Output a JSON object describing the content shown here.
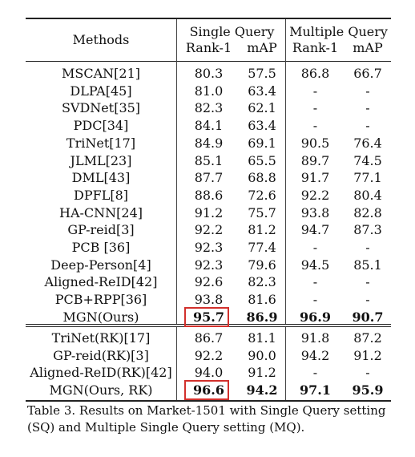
{
  "table": {
    "header": {
      "methods": "Methods",
      "single_query": "Single Query",
      "multiple_query": "Multiple Query",
      "rank1": "Rank-1",
      "map": "mAP",
      "rank1_mq": "Rank-1",
      "map_mq": "mAP"
    },
    "rows": [
      {
        "method": "MSCAN[21]",
        "sq_rank1": "80.3",
        "sq_map": "57.5",
        "mq_rank1": "86.8",
        "mq_map": "66.7"
      },
      {
        "method": "DLPA[45]",
        "sq_rank1": "81.0",
        "sq_map": "63.4",
        "mq_rank1": "-",
        "mq_map": "-"
      },
      {
        "method": "SVDNet[35]",
        "sq_rank1": "82.3",
        "sq_map": "62.1",
        "mq_rank1": "-",
        "mq_map": "-"
      },
      {
        "method": "PDC[34]",
        "sq_rank1": "84.1",
        "sq_map": "63.4",
        "mq_rank1": "-",
        "mq_map": "-"
      },
      {
        "method": "TriNet[17]",
        "sq_rank1": "84.9",
        "sq_map": "69.1",
        "mq_rank1": "90.5",
        "mq_map": "76.4"
      },
      {
        "method": "JLML[23]",
        "sq_rank1": "85.1",
        "sq_map": "65.5",
        "mq_rank1": "89.7",
        "mq_map": "74.5"
      },
      {
        "method": "DML[43]",
        "sq_rank1": "87.7",
        "sq_map": "68.8",
        "mq_rank1": "91.7",
        "mq_map": "77.1"
      },
      {
        "method": "DPFL[8]",
        "sq_rank1": "88.6",
        "sq_map": "72.6",
        "mq_rank1": "92.2",
        "mq_map": "80.4"
      },
      {
        "method": "HA-CNN[24]",
        "sq_rank1": "91.2",
        "sq_map": "75.7",
        "mq_rank1": "93.8",
        "mq_map": "82.8"
      },
      {
        "method": "GP-reid[3]",
        "sq_rank1": "92.2",
        "sq_map": "81.2",
        "mq_rank1": "94.7",
        "mq_map": "87.3"
      },
      {
        "method": "PCB [36]",
        "sq_rank1": "92.3",
        "sq_map": "77.4",
        "mq_rank1": "-",
        "mq_map": "-"
      },
      {
        "method": "Deep-Person[4]",
        "sq_rank1": "92.3",
        "sq_map": "79.6",
        "mq_rank1": "94.5",
        "mq_map": "85.1"
      },
      {
        "method": "Aligned-ReID[42]",
        "sq_rank1": "92.6",
        "sq_map": "82.3",
        "mq_rank1": "-",
        "mq_map": "-"
      },
      {
        "method": "PCB+RPP[36]",
        "sq_rank1": "93.8",
        "sq_map": "81.6",
        "mq_rank1": "-",
        "mq_map": "-"
      },
      {
        "method": "MGN(Ours)",
        "sq_rank1": "95.7",
        "sq_map": "86.9",
        "mq_rank1": "96.9",
        "mq_map": "90.7",
        "bold": true,
        "boxed": true
      },
      {
        "method": "TriNet(RK)[17]",
        "sq_rank1": "86.7",
        "sq_map": "81.1",
        "mq_rank1": "91.8",
        "mq_map": "87.2"
      },
      {
        "method": "GP-reid(RK)[3]",
        "sq_rank1": "92.2",
        "sq_map": "90.0",
        "mq_rank1": "94.2",
        "mq_map": "91.2"
      },
      {
        "method": "Aligned-ReID(RK)[42]",
        "sq_rank1": "94.0",
        "sq_map": "91.2",
        "mq_rank1": "-",
        "mq_map": "-"
      },
      {
        "method": "MGN(Ours, RK)",
        "sq_rank1": "96.6",
        "sq_map": "94.2",
        "mq_rank1": "97.1",
        "mq_map": "95.9",
        "bold": true,
        "boxed": true
      }
    ]
  },
  "caption": "Table 3. Results on Market-1501 with Single Query setting (SQ) and Multiple Single Query setting (MQ).",
  "colors": {
    "highlight_box": "#d2302c"
  }
}
